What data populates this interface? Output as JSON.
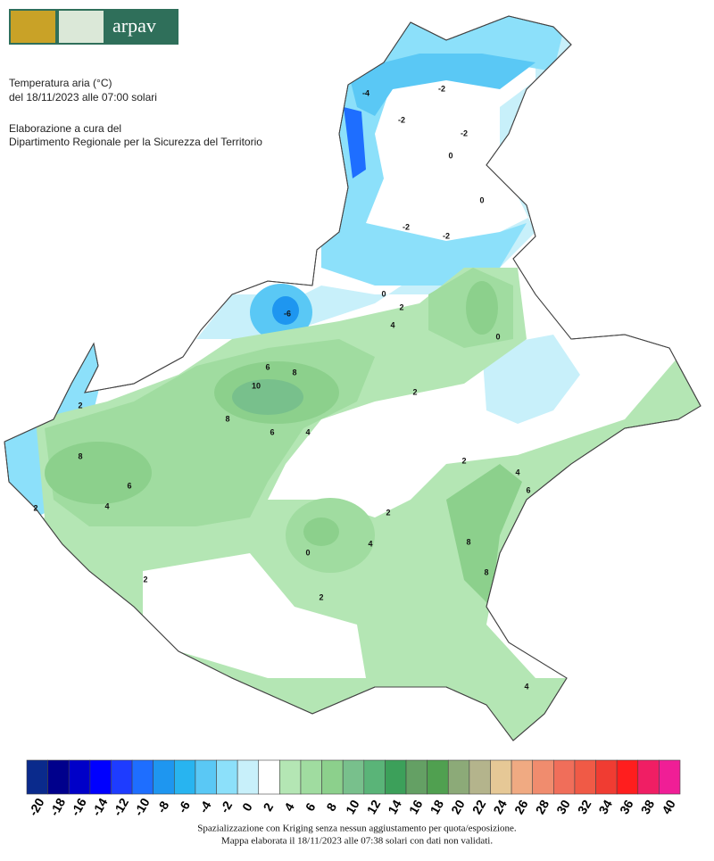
{
  "header": {
    "logo_text": "arpav",
    "title_lines": [
      "Temperatura aria (°C)",
      "del 18/11/2023 alle 07:00 solari"
    ],
    "credit_lines": [
      "Elaborazione a cura del",
      "Dipartimento Regionale per la Sicurezza del Territorio"
    ]
  },
  "map": {
    "contour_labels": [
      "-2",
      "-2",
      "-4",
      "-2",
      "0",
      "-2",
      "0",
      "-2",
      "-6",
      "0",
      "2",
      "4",
      "6",
      "8",
      "10",
      "8",
      "6",
      "4",
      "2",
      "8",
      "6",
      "4",
      "2",
      "0",
      "4",
      "2",
      "2",
      "4",
      "6",
      "8",
      "8",
      "2",
      "2",
      "4",
      "0",
      "2"
    ]
  },
  "legend": {
    "items": [
      {
        "label": "-20",
        "color": "#0a2a8c"
      },
      {
        "label": "-18",
        "color": "#00008c"
      },
      {
        "label": "-16",
        "color": "#0000c8"
      },
      {
        "label": "-14",
        "color": "#0000ff"
      },
      {
        "label": "-12",
        "color": "#1e3cff"
      },
      {
        "label": "-10",
        "color": "#1e6eff"
      },
      {
        "label": "-8",
        "color": "#1e96f0"
      },
      {
        "label": "-6",
        "color": "#28b4f0"
      },
      {
        "label": "-4",
        "color": "#5ac8f5"
      },
      {
        "label": "-2",
        "color": "#8ce0fa"
      },
      {
        "label": "0",
        "color": "#c8f0fa"
      },
      {
        "label": "2",
        "color": "#ffffff"
      },
      {
        "label": "4",
        "color": "#b4e6b4"
      },
      {
        "label": "6",
        "color": "#a0dca0"
      },
      {
        "label": "8",
        "color": "#8cd08c"
      },
      {
        "label": "10",
        "color": "#78c08c"
      },
      {
        "label": "12",
        "color": "#5ab478"
      },
      {
        "label": "14",
        "color": "#3ca05a"
      },
      {
        "label": "16",
        "color": "#64a064"
      },
      {
        "label": "18",
        "color": "#50a050"
      },
      {
        "label": "20",
        "color": "#8caa78"
      },
      {
        "label": "22",
        "color": "#b4b48c"
      },
      {
        "label": "24",
        "color": "#e6c896"
      },
      {
        "label": "26",
        "color": "#f0aa82"
      },
      {
        "label": "28",
        "color": "#f08c6e"
      },
      {
        "label": "30",
        "color": "#f06e5a"
      },
      {
        "label": "32",
        "color": "#f05a46"
      },
      {
        "label": "34",
        "color": "#f03c32"
      },
      {
        "label": "36",
        "color": "#ff1e1e"
      },
      {
        "label": "38",
        "color": "#f01e64"
      },
      {
        "label": "40",
        "color": "#f01e96"
      }
    ]
  },
  "footer": {
    "lines": [
      "Spazializzazione con Kriging senza nessun aggiustamento per quota/esposizione.",
      "Mappa elaborata il 18/11/2023 alle 07:38 solari con dati non validati."
    ]
  }
}
